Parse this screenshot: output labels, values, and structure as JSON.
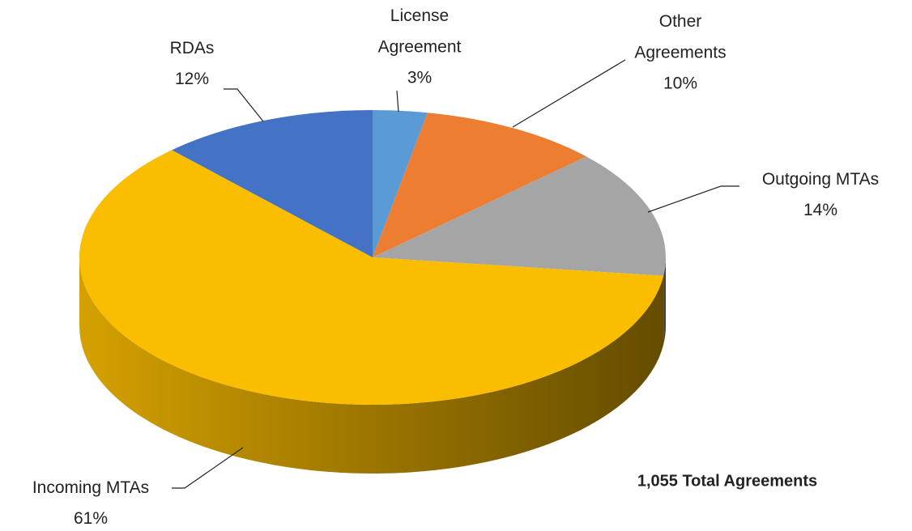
{
  "chart_data": {
    "type": "pie",
    "categories": [
      "License Agreement",
      "Other Agreements",
      "Outgoing MTAs",
      "Incoming MTAs",
      "RDAs"
    ],
    "values": [
      3,
      10,
      14,
      61,
      12
    ],
    "value_labels": [
      "3%",
      "10%",
      "14%",
      "61%",
      "12%"
    ],
    "colors": [
      "#5b9bd5",
      "#ed7d31",
      "#a5a5a5",
      "#fabd00",
      "#4472c4"
    ],
    "annotation": "1,055 Total Agreements"
  }
}
